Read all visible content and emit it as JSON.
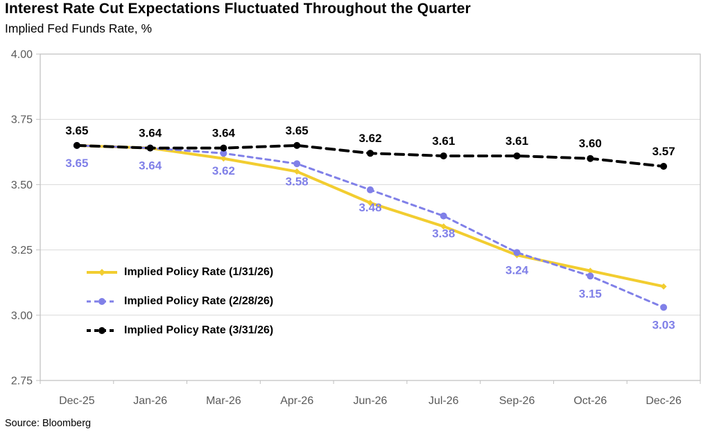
{
  "header": {
    "title": "Interest Rate Cut Expectations Fluctuated Throughout the Quarter",
    "subtitle": "Implied Fed Funds Rate, %"
  },
  "footer": {
    "source": "Source: Bloomberg"
  },
  "chart_data": {
    "type": "line",
    "title": "Interest Rate Cut Expectations Fluctuated Throughout the Quarter",
    "subtitle": "Implied Fed Funds Rate, %",
    "xlabel": "",
    "ylabel": "Implied Fed Funds Rate, %",
    "categories": [
      "Dec-25",
      "Jan-26",
      "Mar-26",
      "Apr-26",
      "Jun-26",
      "Jul-26",
      "Sep-26",
      "Oct-26",
      "Dec-26"
    ],
    "series": [
      {
        "name": "Implied Policy Rate (1/31/26)",
        "color": "#F2CD30",
        "line_style": "solid",
        "dash": "",
        "stroke_width": 4,
        "marker": "diamond",
        "marker_size": 4.5,
        "values": [
          3.65,
          3.64,
          3.6,
          3.55,
          3.43,
          3.34,
          3.23,
          3.17,
          3.11
        ],
        "labels": null,
        "label_position": "none"
      },
      {
        "name": "Implied Policy Rate (2/28/26)",
        "color": "#8080E8",
        "line_style": "dashed",
        "dash": "7,6",
        "stroke_width": 3,
        "marker": "circle",
        "marker_size": 5,
        "values": [
          3.65,
          3.64,
          3.62,
          3.58,
          3.48,
          3.38,
          3.24,
          3.15,
          3.03
        ],
        "labels": [
          "3.65",
          "3.64",
          "3.62",
          "3.58",
          "3.48",
          "3.38",
          "3.24",
          "3.15",
          "3.03"
        ],
        "label_position": "below"
      },
      {
        "name": "Implied Policy Rate (3/31/26)",
        "color": "#000000",
        "line_style": "dashed",
        "dash": "12,8",
        "stroke_width": 4,
        "marker": "circle",
        "marker_size": 5,
        "values": [
          3.65,
          3.64,
          3.64,
          3.65,
          3.62,
          3.61,
          3.61,
          3.6,
          3.57
        ],
        "labels": [
          "3.65",
          "3.64",
          "3.64",
          "3.65",
          "3.62",
          "3.61",
          "3.61",
          "3.60",
          "3.57"
        ],
        "label_position": "above"
      }
    ],
    "ylim": [
      2.75,
      4.0
    ],
    "ytick_step": 0.25,
    "yticks": [
      "4.00",
      "3.75",
      "3.50",
      "3.25",
      "3.00",
      "2.75"
    ],
    "grid": true,
    "legend_position": "inside-left",
    "colors": {
      "grid": "#D9D9D9",
      "axis_border": "#BFBFBF",
      "tick_label": "#595959",
      "data_label_font_size": 17,
      "background": "#FFFFFF"
    }
  }
}
